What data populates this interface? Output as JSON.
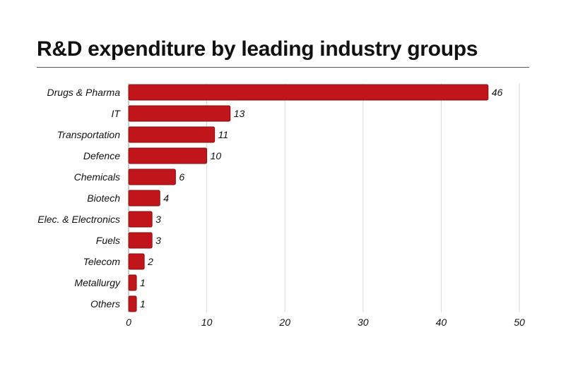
{
  "title": "R&D expenditure by leading industry groups",
  "colors": {
    "bar": "#c0161b",
    "bar_stroke": "#8a0f12",
    "grid": "#d9d9d9"
  },
  "chart_data": {
    "type": "bar",
    "orientation": "horizontal",
    "title": "R&D expenditure by leading industry groups",
    "categories": [
      "Drugs & Pharma",
      "IT",
      "Transportation",
      "Defence",
      "Chemicals",
      "Biotech",
      "Elec. & Electronics",
      "Fuels",
      "Telecom",
      "Metallurgy",
      "Others"
    ],
    "values": [
      46,
      13,
      11,
      10,
      6,
      4,
      3,
      3,
      2,
      1,
      1
    ],
    "xlabel": "",
    "ylabel": "",
    "xlim": [
      0,
      50
    ],
    "xticks": [
      0,
      10,
      20,
      30,
      40,
      50
    ],
    "grid": "vertical",
    "legend": "none"
  }
}
